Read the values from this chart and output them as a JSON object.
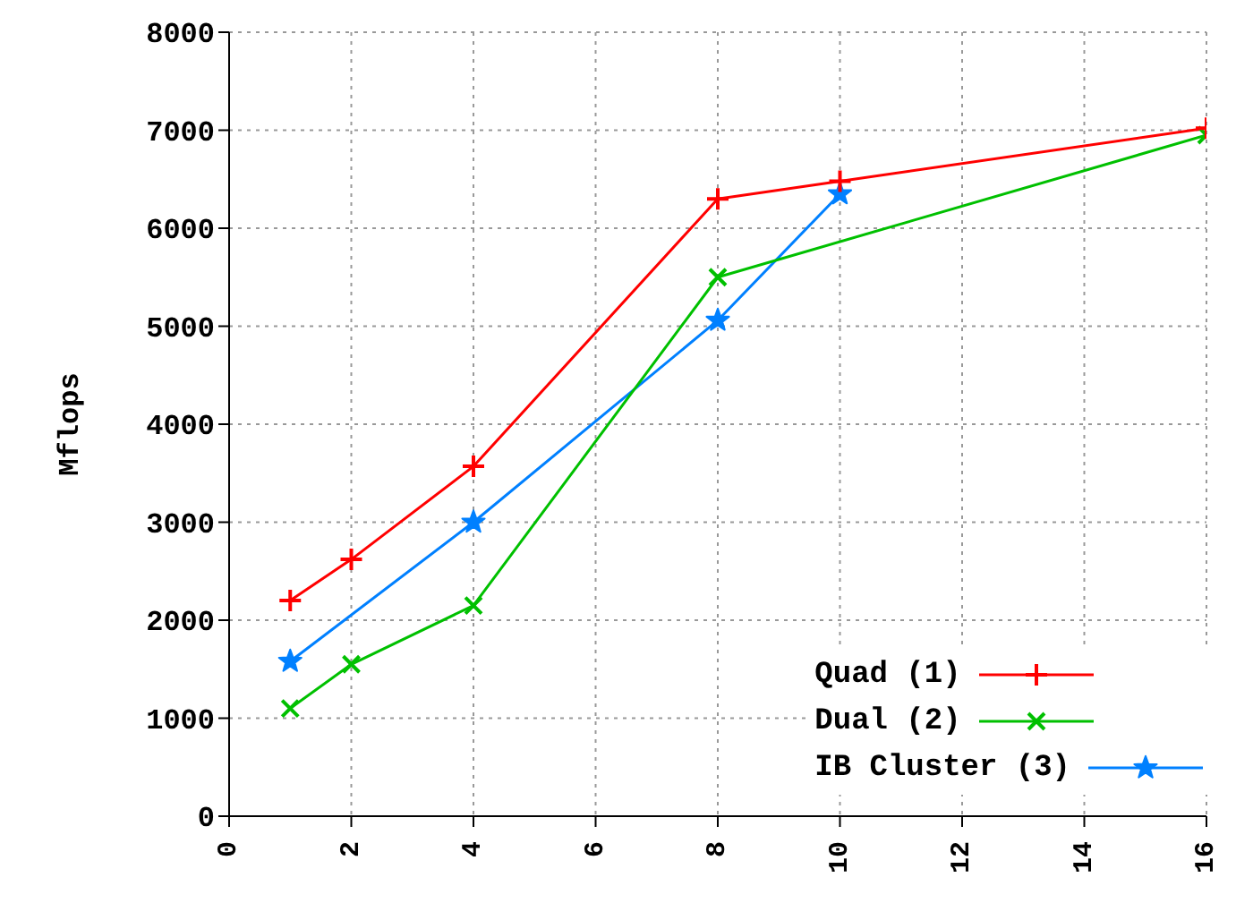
{
  "chart_data": {
    "type": "line",
    "ylabel": "Mflops",
    "x": [
      1,
      2,
      4,
      8,
      10,
      16
    ],
    "series": [
      {
        "name": "Quad (1)",
        "color": "#ff0000",
        "marker": "cross",
        "values": [
          2200,
          2620,
          3570,
          6300,
          6480,
          7020
        ]
      },
      {
        "name": "Dual (2)",
        "color": "#00c000",
        "marker": "x",
        "values": [
          1100,
          1550,
          2150,
          5500,
          null,
          6950
        ]
      },
      {
        "name": "IB Cluster (3)",
        "color": "#0080ff",
        "marker": "star",
        "values": [
          1580,
          null,
          3000,
          5060,
          6350,
          null
        ]
      }
    ],
    "xlim": [
      0,
      16
    ],
    "xticks": [
      0,
      2,
      4,
      6,
      8,
      10,
      12,
      14,
      16
    ],
    "ylim": [
      0,
      8000
    ],
    "yticks": [
      0,
      1000,
      2000,
      3000,
      4000,
      5000,
      6000,
      7000,
      8000
    ],
    "grid": true,
    "legend": "bottom right"
  }
}
